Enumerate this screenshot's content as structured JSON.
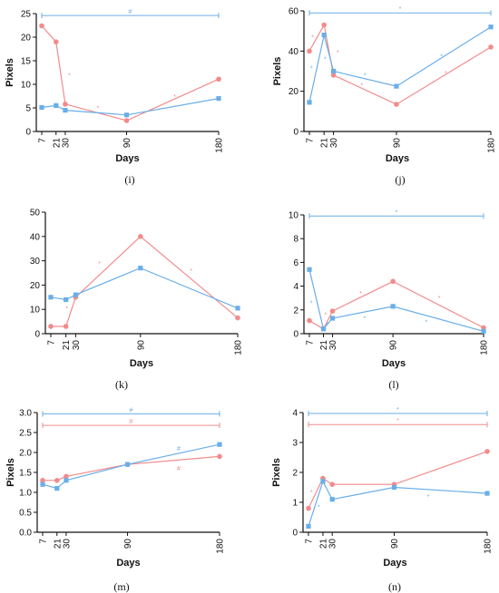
{
  "colors": {
    "red": "#f28b8b",
    "blue": "#6aaee8",
    "axis": "#111111"
  },
  "figure": {
    "chart_data": [
      {
        "panel": "(i)",
        "type": "line",
        "xlabel": "Days",
        "ylabel": "Pixels",
        "x": [
          7,
          21,
          30,
          90,
          180
        ],
        "xticks": [
          "7",
          "21",
          "30",
          "90",
          "180"
        ],
        "ylim": [
          0,
          25
        ],
        "yticks": [
          "0",
          "5",
          "10",
          "15",
          "20",
          "25"
        ],
        "series": [
          {
            "color": "red",
            "values": [
              22.4,
              19.0,
              5.8,
              2.3,
              11.1
            ]
          },
          {
            "color": "blue",
            "values": [
              5.1,
              5.5,
              4.5,
              3.5,
              7.0
            ]
          }
        ],
        "annotations": [
          {
            "text": "*",
            "x": 34,
            "y": 11.9,
            "color": "red"
          },
          {
            "text": "*",
            "x": 62,
            "y": 5.0,
            "color": "red"
          },
          {
            "text": "*",
            "x": 137,
            "y": 7.4,
            "color": "red"
          }
        ],
        "brackets": [
          {
            "color": "blue",
            "y": 24.6,
            "label": "#"
          }
        ]
      },
      {
        "panel": "(j)",
        "type": "line",
        "xlabel": "Days",
        "ylabel": "Pixels",
        "x": [
          7,
          21,
          30,
          90,
          180
        ],
        "xticks": [
          "7",
          "21",
          "30",
          "90",
          "180"
        ],
        "ylim": [
          0,
          60
        ],
        "yticks": [
          "0",
          "20",
          "40",
          "60"
        ],
        "series": [
          {
            "color": "red",
            "values": [
              40,
              53,
              28,
              13.5,
              42
            ]
          },
          {
            "color": "blue",
            "values": [
              14.5,
              48,
              30,
              22.5,
              52
            ]
          }
        ],
        "annotations": [
          {
            "text": "*",
            "x": 10,
            "y": 47,
            "color": "red"
          },
          {
            "text": "*",
            "x": 9,
            "y": 31.5,
            "color": "blue"
          },
          {
            "text": "*",
            "x": 22,
            "y": 36,
            "color": "blue"
          },
          {
            "text": "*",
            "x": 34,
            "y": 39.5,
            "color": "red"
          },
          {
            "text": "*",
            "x": 60,
            "y": 28,
            "color": "blue"
          },
          {
            "text": "*",
            "x": 57,
            "y": 23,
            "color": "red"
          },
          {
            "text": "*",
            "x": 133,
            "y": 37.5,
            "color": "blue"
          },
          {
            "text": "*",
            "x": 137,
            "y": 29,
            "color": "red"
          }
        ],
        "brackets": [
          {
            "color": "blue",
            "y": 59,
            "label": "*"
          }
        ]
      },
      {
        "panel": "(k)",
        "type": "line",
        "xlabel": "Days",
        "ylabel": "",
        "x": [
          7,
          21,
          30,
          90,
          180
        ],
        "xticks": [
          "7",
          "21",
          "30",
          "90",
          "180"
        ],
        "ylim": [
          0,
          50
        ],
        "yticks": [
          "0",
          "10",
          "20",
          "30",
          "40",
          "50"
        ],
        "series": [
          {
            "color": "red",
            "values": [
              3,
              3,
              15,
              40,
              6.5
            ]
          },
          {
            "color": "blue",
            "values": [
              15,
              14,
              16,
              27,
              10.5
            ]
          }
        ],
        "annotations": [
          {
            "text": "*",
            "x": 22,
            "y": 10.5,
            "color": "red"
          },
          {
            "text": "*",
            "x": 52,
            "y": 29,
            "color": "red"
          },
          {
            "text": "*",
            "x": 137,
            "y": 26,
            "color": "red"
          }
        ],
        "brackets": []
      },
      {
        "panel": "(l)",
        "type": "line",
        "xlabel": "Days",
        "ylabel": "",
        "x": [
          7,
          21,
          30,
          90,
          180
        ],
        "xticks": [
          "7",
          "21",
          "30",
          "90",
          "180"
        ],
        "ylim": [
          0,
          10
        ],
        "yticks": [
          "0",
          "2",
          "4",
          "6",
          "8",
          "10"
        ],
        "series": [
          {
            "color": "red",
            "values": [
              1.1,
              0.4,
              1.9,
              4.4,
              0.5
            ]
          },
          {
            "color": "blue",
            "values": [
              5.4,
              0.4,
              1.3,
              2.3,
              0.2
            ]
          }
        ],
        "annotations": [
          {
            "text": "*",
            "x": 9,
            "y": 2.6,
            "color": "blue"
          },
          {
            "text": "*",
            "x": 23,
            "y": 1.6,
            "color": "red"
          },
          {
            "text": "*",
            "x": 25,
            "y": 0.8,
            "color": "blue"
          },
          {
            "text": "*",
            "x": 58,
            "y": 3.4,
            "color": "red"
          },
          {
            "text": "*",
            "x": 62,
            "y": 1.3,
            "color": "blue"
          },
          {
            "text": "*",
            "x": 136,
            "y": 3.0,
            "color": "red"
          },
          {
            "text": "*",
            "x": 123,
            "y": 1.0,
            "color": "blue"
          }
        ],
        "brackets": [
          {
            "color": "blue",
            "y": 9.9,
            "label": "*"
          }
        ]
      },
      {
        "panel": "(m)",
        "type": "line",
        "xlabel": "Days",
        "ylabel": "Pixels",
        "x": [
          7,
          21,
          30,
          90,
          180
        ],
        "xticks": [
          "7",
          "21",
          "30",
          "90",
          "180"
        ],
        "ylim": [
          0,
          3.0
        ],
        "yticks": [
          "0.0",
          "0.5",
          "1.0",
          "1.5",
          "2.0",
          "2.5",
          "3.0"
        ],
        "series": [
          {
            "color": "red",
            "values": [
              1.3,
              1.3,
              1.4,
              1.7,
              1.9
            ]
          },
          {
            "color": "blue",
            "values": [
              1.2,
              1.1,
              1.3,
              1.7,
              2.2
            ]
          }
        ],
        "annotations": [
          {
            "text": "#",
            "x": 140,
            "y": 2.1,
            "color": "blue"
          },
          {
            "text": "#",
            "x": 140,
            "y": 1.6,
            "color": "red"
          }
        ],
        "brackets": [
          {
            "color": "blue",
            "y": 2.97,
            "label": "#"
          },
          {
            "color": "red",
            "y": 2.68,
            "label": "#"
          }
        ]
      },
      {
        "panel": "(n)",
        "type": "line",
        "xlabel": "Days",
        "ylabel": "Pixels",
        "x": [
          7,
          21,
          30,
          90,
          180
        ],
        "xticks": [
          "7",
          "21",
          "30",
          "90",
          "180"
        ],
        "ylim": [
          0,
          4
        ],
        "yticks": [
          "0",
          "1",
          "2",
          "3",
          "4"
        ],
        "series": [
          {
            "color": "red",
            "values": [
              0.8,
              1.8,
              1.6,
              1.6,
              2.7
            ]
          },
          {
            "color": "blue",
            "values": [
              0.2,
              1.7,
              1.1,
              1.5,
              1.3
            ]
          }
        ],
        "annotations": [
          {
            "text": "*",
            "x": 10,
            "y": 1.35,
            "color": "red"
          },
          {
            "text": "*",
            "x": 17,
            "y": 0.85,
            "color": "blue"
          },
          {
            "text": "*",
            "x": 123,
            "y": 1.2,
            "color": "blue"
          }
        ],
        "brackets": [
          {
            "color": "blue",
            "y": 3.97,
            "label": "*"
          },
          {
            "color": "red",
            "y": 3.6,
            "label": "*"
          }
        ]
      }
    ]
  }
}
